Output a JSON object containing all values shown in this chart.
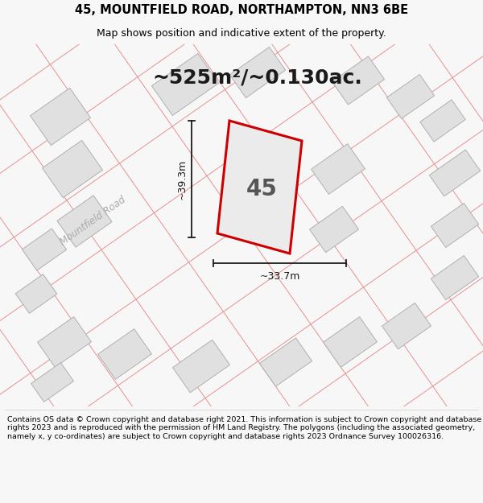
{
  "title_line1": "45, MOUNTFIELD ROAD, NORTHAMPTON, NN3 6BE",
  "title_line2": "Map shows position and indicative extent of the property.",
  "area_text": "~525m²/~0.130ac.",
  "house_number": "45",
  "dim_width": "~33.7m",
  "dim_height": "~39.3m",
  "road_label": "Mountfield Road",
  "footer_text": "Contains OS data © Crown copyright and database right 2021. This information is subject to Crown copyright and database rights 2023 and is reproduced with the permission of HM Land Registry. The polygons (including the associated geometry, namely x, y co-ordinates) are subject to Crown copyright and database rights 2023 Ordnance Survey 100026316.",
  "bg_color": "#f7f7f7",
  "map_bg": "#f0efef",
  "plot_color_fill": "#ebebeb",
  "plot_color_edge": "#cc0000",
  "building_fill": "#e0e0e0",
  "building_edge": "#b0b0b0",
  "road_line_color": "#e89090",
  "title_color": "#000000",
  "footer_color": "#000000",
  "map_road_bg": "#ffffff",
  "dim_line_color": "#1a1a1a",
  "area_text_color": "#1a1a1a",
  "house_num_color": "#555555"
}
